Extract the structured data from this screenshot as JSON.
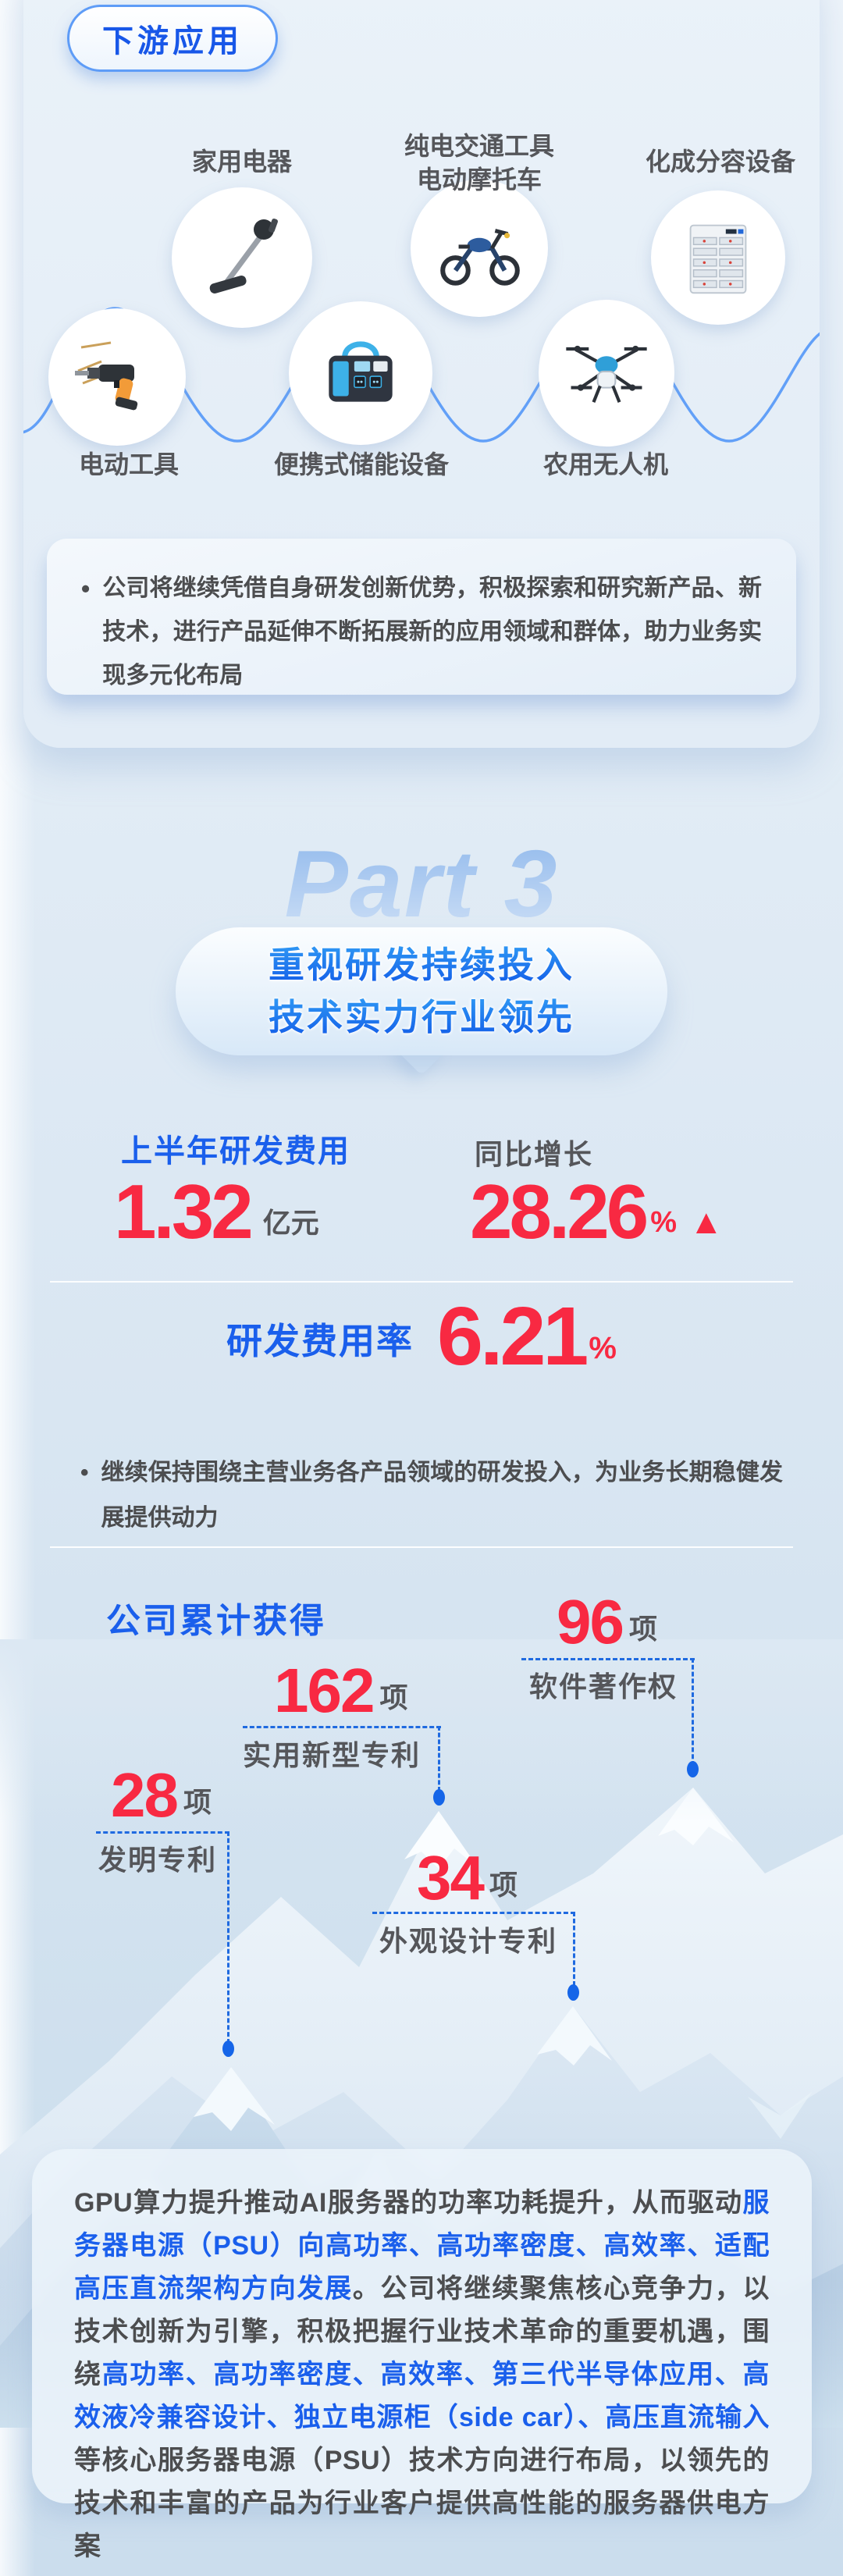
{
  "ui": {
    "bullet": "•"
  },
  "colors": {
    "accent_blue": "#1a5fec",
    "number_red": "#f82942",
    "label_gray": "#55565a",
    "dashed_blue": "#1f6ae0",
    "wave_blue": "#5b9bf8",
    "page_bg": "#d9e6f2"
  },
  "downstream": {
    "badge": "下游应用",
    "products": [
      {
        "label": "家用电器",
        "icon": "vacuum-cleaner-icon"
      },
      {
        "label": "纯电交通工具",
        "label2": "电动摩托车",
        "icon": "electric-motorcycle-icon"
      },
      {
        "label": "化成分容设备",
        "icon": "formation-equipment-icon"
      },
      {
        "label": "电动工具",
        "icon": "power-drill-icon"
      },
      {
        "label": "便携式储能设备",
        "icon": "portable-power-station-icon"
      },
      {
        "label": "农用无人机",
        "icon": "agricultural-drone-icon"
      }
    ],
    "note": "公司将继续凭借自身研发创新优势，积极探索和研究新产品、新技术，进行产品延伸不断拓展新的应用领域和群体，助力业务实现多元化布局"
  },
  "part3": {
    "ghost": "Part 3",
    "title_line1": "重视研发持续投入",
    "title_line2": "技术实力行业领先"
  },
  "rnd": {
    "expense_label": "上半年研发费用",
    "expense_value": "1.32",
    "expense_unit": "亿元",
    "yoy_label": "同比增长",
    "yoy_value": "28.26",
    "yoy_unit": "%",
    "up_arrow": "▲",
    "ratio_label": "研发费用率",
    "ratio_value": "6.21",
    "ratio_unit": "%",
    "note": "继续保持围绕主营业务各产品领域的研发投入，为业务长期稳健发展提供动力"
  },
  "patents": {
    "heading": "公司累计获得",
    "items": [
      {
        "value": "96",
        "unit": "项",
        "label": "软件著作权"
      },
      {
        "value": "162",
        "unit": "项",
        "label": "实用新型专利"
      },
      {
        "value": "28",
        "unit": "项",
        "label": "发明专利"
      },
      {
        "value": "34",
        "unit": "项",
        "label": "外观设计专利"
      }
    ]
  },
  "outlook": {
    "segments": [
      {
        "text": "GPU算力提升推动AI服务器的功率功耗提升，从而驱动",
        "highlight": false
      },
      {
        "text": "服务器电源（PSU）向高功率、高功率密度、高效率、适配高压直流架构方向发展",
        "highlight": true
      },
      {
        "text": "。公司将继续聚焦核心竞争力，以技术创新为引擎，积极把握行业技术革命的重要机遇，围绕",
        "highlight": false
      },
      {
        "text": "高功率、高功率密度、高效率、第三代半导体应用、高效液冷兼容设计、独立电源柜（side car）、高压直流输入",
        "highlight": true
      },
      {
        "text": "等核心服务器电源（PSU）技术方向进行布局，以领先的技术和丰富的产品为行业客户提供高性能的服务器供电方案",
        "highlight": false
      }
    ]
  }
}
